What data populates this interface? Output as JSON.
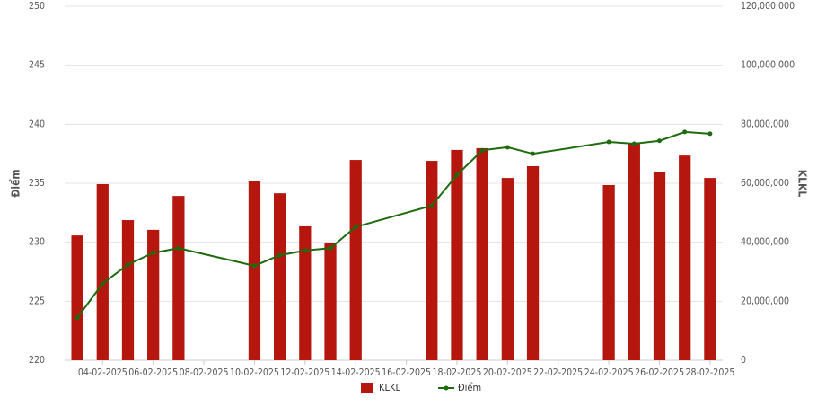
{
  "chart_data": {
    "type": "combo",
    "x": [
      "03-02-2025",
      "04-02-2025",
      "05-02-2025",
      "06-02-2025",
      "07-02-2025",
      "10-02-2025",
      "11-02-2025",
      "12-02-2025",
      "13-02-2025",
      "14-02-2025",
      "17-02-2025",
      "18-02-2025",
      "19-02-2025",
      "20-02-2025",
      "21-02-2025",
      "24-02-2025",
      "25-02-2025",
      "26-02-2025",
      "27-02-2025",
      "28-02-2025"
    ],
    "xticks": [
      "04-02-2025",
      "06-02-2025",
      "08-02-2025",
      "10-02-2025",
      "12-02-2025",
      "14-02-2025",
      "16-02-2025",
      "18-02-2025",
      "20-02-2025",
      "22-02-2025",
      "24-02-2025",
      "26-02-2025",
      "28-02-2025"
    ],
    "series": [
      {
        "name": "KLKL",
        "type": "bar",
        "color": "#b5170f",
        "axis": "y2",
        "values": [
          42300000,
          59700000,
          47500000,
          44200000,
          55700000,
          60900000,
          56600000,
          45400000,
          39600000,
          67900000,
          67600000,
          71300000,
          71900000,
          61800000,
          65800000,
          59400000,
          73400000,
          63700000,
          69400000,
          61800000
        ]
      },
      {
        "name": "Điểm",
        "type": "line",
        "color": "#1e6b0e",
        "values": [
          223.6,
          226.5,
          228.1,
          229.1,
          229.5,
          228.0,
          228.9,
          229.3,
          229.5,
          231.3,
          233.1,
          235.7,
          237.8,
          238.05,
          237.5,
          238.5,
          238.35,
          238.6,
          239.35,
          239.2
        ]
      }
    ],
    "ylabel": "Điểm",
    "y2label": "KLKL",
    "ylim": [
      220,
      250
    ],
    "yticks": [
      220,
      225,
      230,
      235,
      240,
      245,
      250
    ],
    "y2lim": [
      0,
      120000000
    ],
    "y2ticks": [
      0,
      {
        "value": 20000000,
        "label": "20,000,000"
      },
      {
        "value": 40000000,
        "label": "40,000,000"
      },
      {
        "value": 60000000,
        "label": "60,000,000"
      },
      {
        "value": 80000000,
        "label": "80,000,000"
      },
      {
        "value": 100000000,
        "label": "100,000,000"
      },
      {
        "value": 120000000,
        "label": "120,000,000"
      }
    ],
    "grid": true,
    "legend": "bottom"
  }
}
